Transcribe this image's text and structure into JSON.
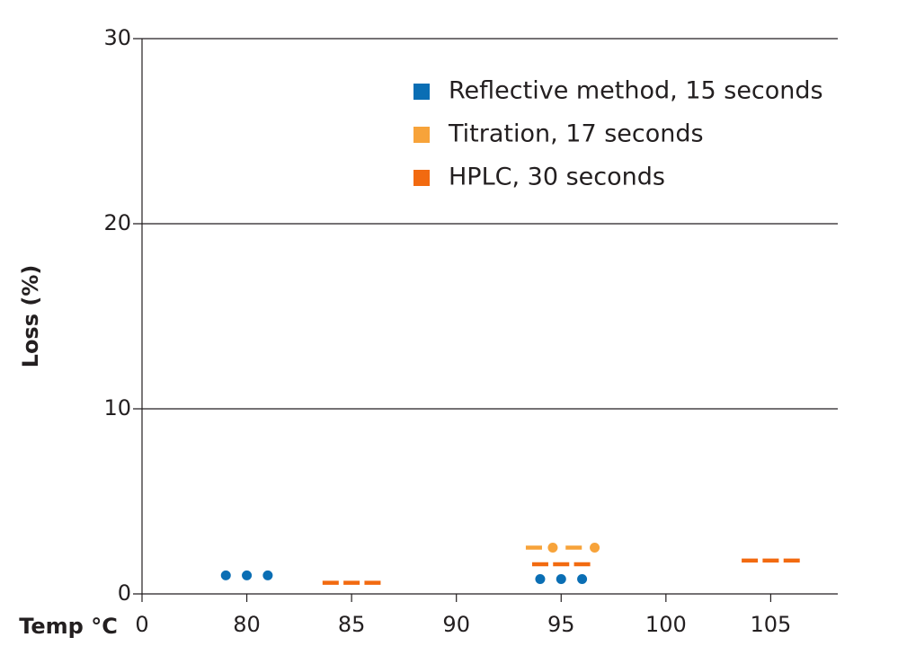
{
  "chart_data": {
    "type": "scatter",
    "y_label": "Loss (%)",
    "x_label": "Temp °C",
    "x_origin_label": "0",
    "xlim": [
      75,
      108.2
    ],
    "xticks": [
      80,
      85,
      90,
      95,
      100,
      105
    ],
    "ylim": [
      0,
      30
    ],
    "yticks": [
      0,
      10,
      20,
      30
    ],
    "grid": true,
    "series": [
      {
        "name": "Reflective method, 15 seconds",
        "color": "#0a6eb4",
        "marker": "dot",
        "x": [
          79,
          80,
          81,
          94,
          95,
          96
        ],
        "values": [
          1.0,
          1.0,
          1.0,
          0.8,
          0.8,
          0.8
        ]
      },
      {
        "name": "Titration, 17 seconds",
        "color": "#f7a33a",
        "marker": [
          "dash",
          "dot",
          "dash",
          "dot"
        ],
        "x": [
          93.7,
          94.6,
          95.6,
          96.6
        ],
        "values": [
          2.5,
          2.5,
          2.5,
          2.5
        ]
      },
      {
        "name": "HPLC, 30 seconds",
        "color": "#f26a10",
        "marker": "dash",
        "x": [
          84,
          85,
          86,
          94,
          95,
          96,
          104,
          105,
          106
        ],
        "values": [
          0.6,
          0.6,
          0.6,
          1.6,
          1.6,
          1.6,
          1.8,
          1.8,
          1.8
        ]
      }
    ]
  }
}
